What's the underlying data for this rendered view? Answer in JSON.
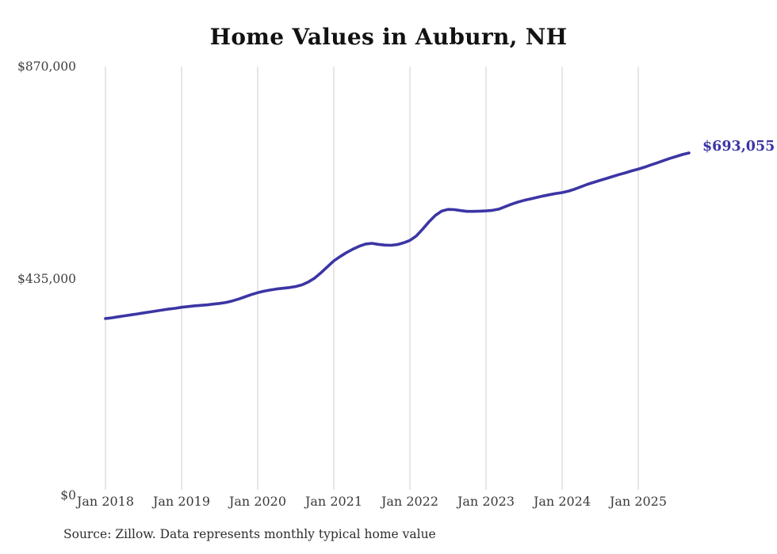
{
  "title": "Home Values in Auburn, NH",
  "source_note": "Source: Zillow. Data represents monthly typical home value",
  "end_label": "$693,055",
  "colors": {
    "line": "#3c35a4",
    "grid": "#cccccc",
    "axis_text": "#3f3f3f",
    "title_text": "#121212",
    "source_text": "#2e2e2e",
    "background": "#ffffff"
  },
  "chart_data": {
    "type": "line",
    "title": "Home Values in Auburn, NH",
    "xlabel": "",
    "ylabel": "",
    "ylim": [
      0,
      870000
    ],
    "y_ticks": [
      0,
      435000,
      870000
    ],
    "y_tick_labels": [
      "$0",
      "$435,000",
      "$870,000"
    ],
    "x_tick_labels": [
      "Jan 2018",
      "Jan 2019",
      "Jan 2020",
      "Jan 2021",
      "Jan 2022",
      "Jan 2023",
      "Jan 2024",
      "Jan 2025"
    ],
    "grid": "vertical-only",
    "legend": "none",
    "end_annotation": {
      "text": "$693,055",
      "value": 693055
    },
    "x_interval": "monthly",
    "x": [
      "2018-01",
      "2018-02",
      "2018-03",
      "2018-04",
      "2018-05",
      "2018-06",
      "2018-07",
      "2018-08",
      "2018-09",
      "2018-10",
      "2018-11",
      "2018-12",
      "2019-01",
      "2019-02",
      "2019-03",
      "2019-04",
      "2019-05",
      "2019-06",
      "2019-07",
      "2019-08",
      "2019-09",
      "2019-10",
      "2019-11",
      "2019-12",
      "2020-01",
      "2020-02",
      "2020-03",
      "2020-04",
      "2020-05",
      "2020-06",
      "2020-07",
      "2020-08",
      "2020-09",
      "2020-10",
      "2020-11",
      "2020-12",
      "2021-01",
      "2021-02",
      "2021-03",
      "2021-04",
      "2021-05",
      "2021-06",
      "2021-07",
      "2021-08",
      "2021-09",
      "2021-10",
      "2021-11",
      "2021-12",
      "2022-01",
      "2022-02",
      "2022-03",
      "2022-04",
      "2022-05",
      "2022-06",
      "2022-07",
      "2022-08",
      "2022-09",
      "2022-10",
      "2022-11",
      "2022-12",
      "2023-01",
      "2023-02",
      "2023-03",
      "2023-04",
      "2023-05",
      "2023-06",
      "2023-07",
      "2023-08",
      "2023-09",
      "2023-10",
      "2023-11",
      "2023-12",
      "2024-01",
      "2024-02",
      "2024-03",
      "2024-04",
      "2024-05",
      "2024-06",
      "2024-07",
      "2024-08",
      "2024-09",
      "2024-10",
      "2024-11",
      "2024-12",
      "2025-01",
      "2025-02",
      "2025-03",
      "2025-04",
      "2025-05",
      "2025-06",
      "2025-07",
      "2025-08",
      "2025-09"
    ],
    "series": [
      {
        "name": "Typical home value",
        "values": [
          354000,
          355500,
          357500,
          359500,
          361500,
          363500,
          365500,
          367500,
          369500,
          371500,
          373500,
          375000,
          377000,
          378500,
          380000,
          381000,
          382000,
          383500,
          385000,
          387000,
          390000,
          394000,
          398500,
          403000,
          407000,
          410000,
          412500,
          414500,
          416000,
          417500,
          419500,
          423000,
          429000,
          437000,
          448000,
          460000,
          472000,
          481000,
          489000,
          496000,
          502000,
          506500,
          508000,
          506000,
          504500,
          504000,
          505500,
          509000,
          514000,
          523000,
          537000,
          552000,
          565000,
          574000,
          577500,
          577000,
          575000,
          573500,
          573500,
          574000,
          574500,
          575500,
          578000,
          583000,
          588000,
          592500,
          596000,
          599000,
          602000,
          605000,
          607500,
          610000,
          612000,
          615000,
          619000,
          624000,
          629000,
          633000,
          637000,
          641000,
          645000,
          649000,
          652500,
          656500,
          660000,
          664000,
          668500,
          673000,
          677500,
          682000,
          686000,
          690000,
          693055
        ]
      }
    ]
  }
}
